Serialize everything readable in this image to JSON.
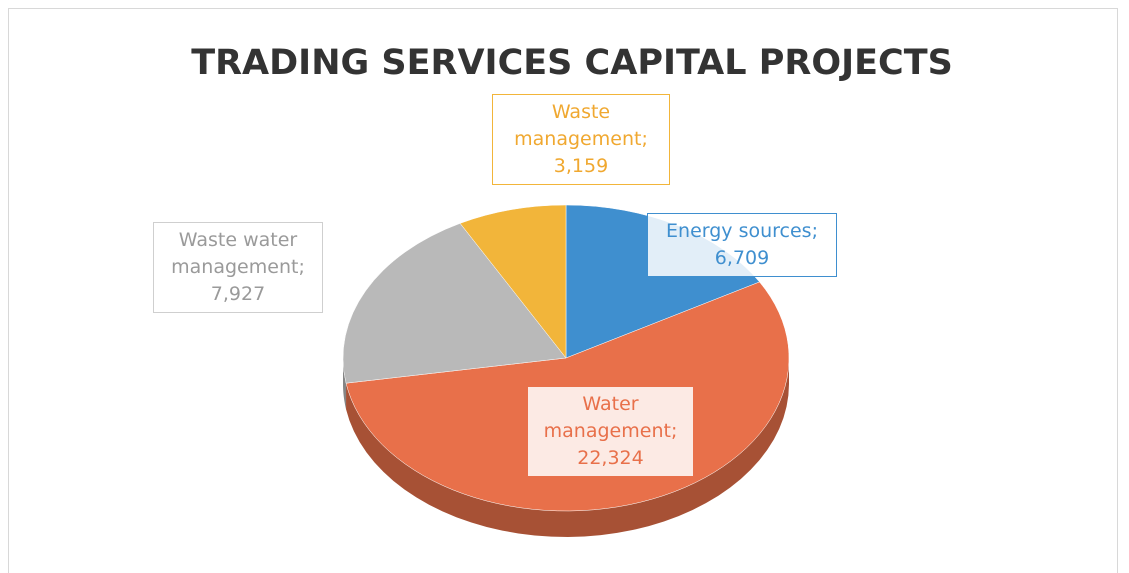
{
  "chart_data": {
    "type": "pie",
    "title": "TRADING SERVICES CAPITAL PROJECTS",
    "categories": [
      "Energy sources",
      "Water management",
      "Waste water management",
      "Waste management"
    ],
    "values": [
      6709,
      22324,
      7927,
      3159
    ],
    "value_labels": [
      "6,709",
      "22,324",
      "7,927",
      "3,159"
    ],
    "separator": ";",
    "colors": [
      "#3f8fcf",
      "#e8704a",
      "#b9b9b9",
      "#f2b53a"
    ],
    "three_d": true
  }
}
